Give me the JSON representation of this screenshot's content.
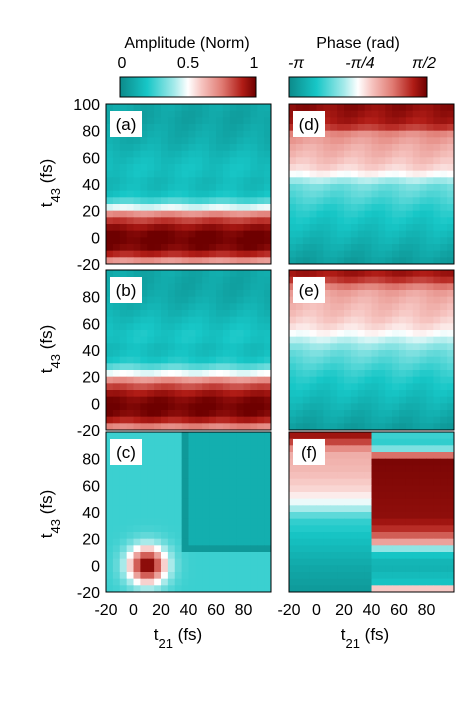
{
  "chart_data": {
    "type": "heatmap",
    "colorbars": [
      {
        "title": "Amplitude (Norm)",
        "ticks": [
          "0",
          "0.5",
          "1"
        ],
        "tick_values": [
          0,
          0.5,
          1
        ],
        "range": [
          0,
          1
        ],
        "stops": [
          {
            "v": 0.0,
            "c": "#0c8a8a"
          },
          {
            "v": 0.2,
            "c": "#17c7c7"
          },
          {
            "v": 0.4,
            "c": "#a6eaea"
          },
          {
            "v": 0.5,
            "c": "#ffffff"
          },
          {
            "v": 0.6,
            "c": "#f6c4c0"
          },
          {
            "v": 0.75,
            "c": "#e07b73"
          },
          {
            "v": 0.9,
            "c": "#b01c16"
          },
          {
            "v": 1.0,
            "c": "#6e0000"
          }
        ]
      },
      {
        "title": "Phase (rad)",
        "ticks": [
          "-π",
          "-π/4",
          "π/2"
        ],
        "tick_values": [
          -3.1416,
          -0.7854,
          1.5708
        ],
        "range": [
          -3.1416,
          1.5708
        ],
        "stops": [
          {
            "v": 0.0,
            "c": "#0c8a8a"
          },
          {
            "v": 0.2,
            "c": "#17c7c7"
          },
          {
            "v": 0.4,
            "c": "#a6eaea"
          },
          {
            "v": 0.5,
            "c": "#ffffff"
          },
          {
            "v": 0.6,
            "c": "#f6c4c0"
          },
          {
            "v": 0.75,
            "c": "#e07b73"
          },
          {
            "v": 0.9,
            "c": "#b01c16"
          },
          {
            "v": 1.0,
            "c": "#6e0000"
          }
        ]
      }
    ],
    "x_label": "t21 (fs)",
    "y_label": "t43 (fs)",
    "x_range": [
      -20,
      100
    ],
    "y_range": [
      -20,
      100
    ],
    "x_ticks": [
      -20,
      0,
      20,
      40,
      60,
      80
    ],
    "y_ticks": [
      -20,
      0,
      20,
      40,
      60,
      80,
      100
    ],
    "grid": false,
    "panels": [
      {
        "label": "(a)",
        "quantity": "amplitude",
        "cols": 24,
        "rows": 24,
        "profile": [
          {
            "t43": -20,
            "v": 0.58
          },
          {
            "t43": -15,
            "v": 0.82
          },
          {
            "t43": -10,
            "v": 0.96
          },
          {
            "t43": -5,
            "v": 1.0
          },
          {
            "t43": 0,
            "v": 1.0
          },
          {
            "t43": 5,
            "v": 0.98
          },
          {
            "t43": 10,
            "v": 0.9
          },
          {
            "t43": 15,
            "v": 0.8
          },
          {
            "t43": 20,
            "v": 0.62
          },
          {
            "t43": 22,
            "v": 0.48
          },
          {
            "t43": 25,
            "v": 0.35
          },
          {
            "t43": 30,
            "v": 0.2
          },
          {
            "t43": 40,
            "v": 0.15
          },
          {
            "t43": 50,
            "v": 0.18
          },
          {
            "t43": 60,
            "v": 0.16
          },
          {
            "t43": 70,
            "v": 0.12
          },
          {
            "t43": 80,
            "v": 0.1
          },
          {
            "t43": 90,
            "v": 0.08
          },
          {
            "t43": 100,
            "v": 0.1
          }
        ]
      },
      {
        "label": "(b)",
        "quantity": "amplitude",
        "cols": 24,
        "rows": 24,
        "profile": [
          {
            "t43": -20,
            "v": 0.62
          },
          {
            "t43": -15,
            "v": 0.84
          },
          {
            "t43": -10,
            "v": 0.96
          },
          {
            "t43": -5,
            "v": 1.0
          },
          {
            "t43": 0,
            "v": 0.99
          },
          {
            "t43": 5,
            "v": 0.96
          },
          {
            "t43": 10,
            "v": 0.88
          },
          {
            "t43": 15,
            "v": 0.78
          },
          {
            "t43": 20,
            "v": 0.62
          },
          {
            "t43": 22,
            "v": 0.5
          },
          {
            "t43": 25,
            "v": 0.38
          },
          {
            "t43": 30,
            "v": 0.22
          },
          {
            "t43": 40,
            "v": 0.16
          },
          {
            "t43": 50,
            "v": 0.2
          },
          {
            "t43": 60,
            "v": 0.17
          },
          {
            "t43": 70,
            "v": 0.13
          },
          {
            "t43": 80,
            "v": 0.1
          },
          {
            "t43": 90,
            "v": 0.09
          },
          {
            "t43": 100,
            "v": 0.1
          }
        ]
      },
      {
        "label": "(c)",
        "quantity": "amplitude",
        "cols": 24,
        "rows": 24,
        "field": "peak",
        "peak": {
          "t21": 10,
          "t43": 0,
          "width": 14,
          "amp": 1.0
        },
        "baseline": 0.25,
        "ridge_t21": 38,
        "ridge_t43": 12
      },
      {
        "label": "(d)",
        "quantity": "phase",
        "cols": 24,
        "rows": 24,
        "profile": [
          {
            "t43": -20,
            "v": 0.06
          },
          {
            "t43": -10,
            "v": 0.1
          },
          {
            "t43": 0,
            "v": 0.14
          },
          {
            "t43": 10,
            "v": 0.18
          },
          {
            "t43": 20,
            "v": 0.22
          },
          {
            "t43": 30,
            "v": 0.28
          },
          {
            "t43": 40,
            "v": 0.34
          },
          {
            "t43": 45,
            "v": 0.46
          },
          {
            "t43": 50,
            "v": 0.56
          },
          {
            "t43": 60,
            "v": 0.62
          },
          {
            "t43": 70,
            "v": 0.66
          },
          {
            "t43": 78,
            "v": 0.72
          },
          {
            "t43": 82,
            "v": 0.85
          },
          {
            "t43": 88,
            "v": 0.92
          },
          {
            "t43": 100,
            "v": 0.96
          }
        ]
      },
      {
        "label": "(e)",
        "quantity": "phase",
        "cols": 24,
        "rows": 24,
        "profile": [
          {
            "t43": -20,
            "v": 0.06
          },
          {
            "t43": -10,
            "v": 0.1
          },
          {
            "t43": 0,
            "v": 0.14
          },
          {
            "t43": 10,
            "v": 0.18
          },
          {
            "t43": 20,
            "v": 0.22
          },
          {
            "t43": 30,
            "v": 0.28
          },
          {
            "t43": 40,
            "v": 0.34
          },
          {
            "t43": 48,
            "v": 0.44
          },
          {
            "t43": 55,
            "v": 0.54
          },
          {
            "t43": 65,
            "v": 0.6
          },
          {
            "t43": 75,
            "v": 0.63
          },
          {
            "t43": 85,
            "v": 0.68
          },
          {
            "t43": 92,
            "v": 0.85
          },
          {
            "t43": 100,
            "v": 0.95
          }
        ]
      },
      {
        "label": "(f)",
        "quantity": "phase",
        "cols": 24,
        "rows": 24,
        "field": "split",
        "split_t21": 38,
        "left_profile": [
          {
            "t43": -20,
            "v": 0.05
          },
          {
            "t43": 0,
            "v": 0.1
          },
          {
            "t43": 20,
            "v": 0.18
          },
          {
            "t43": 35,
            "v": 0.25
          },
          {
            "t43": 45,
            "v": 0.45
          },
          {
            "t43": 55,
            "v": 0.56
          },
          {
            "t43": 70,
            "v": 0.62
          },
          {
            "t43": 85,
            "v": 0.65
          },
          {
            "t43": 95,
            "v": 0.9
          },
          {
            "t43": 100,
            "v": 0.95
          }
        ],
        "right_profile": [
          {
            "t43": -20,
            "v": 0.98
          },
          {
            "t43": -15,
            "v": 0.2
          },
          {
            "t43": 0,
            "v": 0.12
          },
          {
            "t43": 10,
            "v": 0.22
          },
          {
            "t43": 18,
            "v": 0.7
          },
          {
            "t43": 25,
            "v": 0.85
          },
          {
            "t43": 35,
            "v": 0.95
          },
          {
            "t43": 80,
            "v": 0.98
          },
          {
            "t43": 88,
            "v": 0.3
          },
          {
            "t43": 95,
            "v": 0.2
          },
          {
            "t43": 100,
            "v": 0.3
          }
        ]
      }
    ]
  }
}
